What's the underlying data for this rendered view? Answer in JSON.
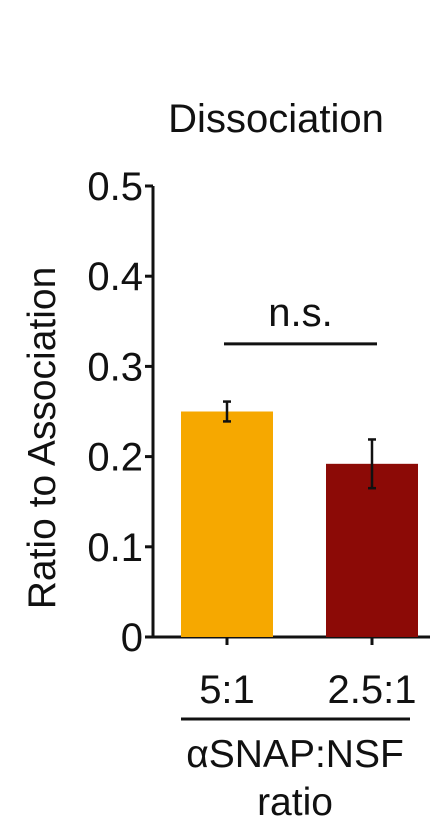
{
  "chart_data": {
    "type": "bar",
    "title": "Dissociation",
    "ylabel": "Ratio to Association",
    "xlabel_lines": [
      "αSNAP:NSF",
      "ratio"
    ],
    "categories": [
      "5:1",
      "2.5:1"
    ],
    "values": [
      0.25,
      0.192
    ],
    "errors": [
      0.011,
      0.027
    ],
    "bar_colors": [
      "#F6A800",
      "#8C0A06"
    ],
    "ylim": [
      0,
      0.5
    ],
    "yticks": [
      0,
      0.1,
      0.2,
      0.3,
      0.4,
      0.5
    ],
    "ytick_labels": [
      "0",
      "0.1",
      "0.2",
      "0.3",
      "0.4",
      "0.5"
    ],
    "grid": false,
    "annotations": [
      {
        "text": "n.s.",
        "between": [
          0,
          1
        ],
        "y_value": 0.325
      }
    ]
  }
}
